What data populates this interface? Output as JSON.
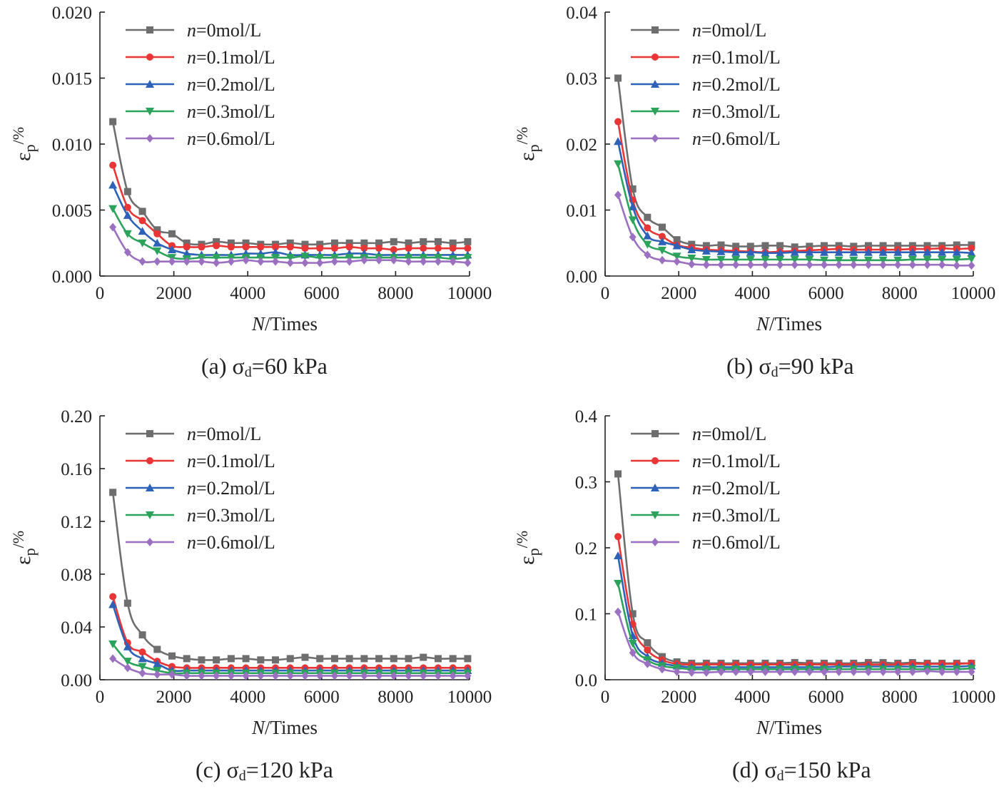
{
  "colors": {
    "n0": "#6e6e6e",
    "n01": "#e83535",
    "n02": "#2e62b8",
    "n03": "#2ca35a",
    "n06": "#9b70c0"
  },
  "chart_data": [
    {
      "type": "line",
      "caption_prefix": "(a) σ",
      "caption_sub": "d",
      "caption_suffix": "=60 kPa",
      "xlabel_italic": "N",
      "xlabel_rest": "/Times",
      "ylabel_main": "ε",
      "ylabel_sub": "p",
      "ylabel_suffix": "/%",
      "xlim": [
        0,
        10000
      ],
      "ylim": [
        0,
        0.02
      ],
      "xticks": [
        0,
        2000,
        4000,
        6000,
        8000,
        10000
      ],
      "yticks": [
        0,
        0.005,
        0.01,
        0.015,
        0.02
      ],
      "ytick_labels": [
        "0.000",
        "0.005",
        "0.010",
        "0.015",
        "0.020"
      ],
      "xtick_labels": [
        "0",
        "2000",
        "4000",
        "6000",
        "8000",
        "10000"
      ],
      "x": [
        350,
        750,
        1150,
        1550,
        1950,
        2350,
        2750,
        3150,
        3550,
        3950,
        4350,
        4750,
        5150,
        5550,
        5950,
        6350,
        6750,
        7150,
        7550,
        7950,
        8350,
        8750,
        9150,
        9550,
        9950
      ],
      "series": [
        {
          "name_italic": "n",
          "name_rest": "=0mol/L",
          "marker": "square",
          "color_key": "n0",
          "values": [
            0.0117,
            0.0064,
            0.0049,
            0.0035,
            0.0032,
            0.0025,
            0.0024,
            0.0026,
            0.0025,
            0.0025,
            0.0024,
            0.0024,
            0.0025,
            0.0024,
            0.0024,
            0.0025,
            0.0025,
            0.0025,
            0.0025,
            0.0026,
            0.0025,
            0.0026,
            0.0026,
            0.0025,
            0.0026
          ]
        },
        {
          "name_italic": "n",
          "name_rest": "=0.1mol/L",
          "marker": "circle",
          "color_key": "n01",
          "values": [
            0.0084,
            0.0052,
            0.0042,
            0.0032,
            0.0023,
            0.0022,
            0.0022,
            0.0023,
            0.0022,
            0.0022,
            0.0022,
            0.0022,
            0.0022,
            0.0021,
            0.0021,
            0.0021,
            0.0022,
            0.0021,
            0.0021,
            0.002,
            0.0021,
            0.0021,
            0.0021,
            0.0021,
            0.0021
          ]
        },
        {
          "name_italic": "n",
          "name_rest": "=0.2mol/L",
          "marker": "triangle-up",
          "color_key": "n02",
          "values": [
            0.0069,
            0.0046,
            0.0034,
            0.0025,
            0.002,
            0.0017,
            0.0016,
            0.0016,
            0.0016,
            0.0017,
            0.0017,
            0.0018,
            0.0016,
            0.0016,
            0.0016,
            0.0016,
            0.0017,
            0.0017,
            0.0016,
            0.0016,
            0.0016,
            0.0016,
            0.0016,
            0.0016,
            0.0016
          ]
        },
        {
          "name_italic": "n",
          "name_rest": "=0.3mol/L",
          "marker": "triangle-down",
          "color_key": "n03",
          "values": [
            0.0051,
            0.0032,
            0.0025,
            0.0019,
            0.0014,
            0.0013,
            0.0014,
            0.0014,
            0.0014,
            0.0014,
            0.0014,
            0.0014,
            0.0014,
            0.0015,
            0.0014,
            0.0014,
            0.0014,
            0.0014,
            0.0014,
            0.0014,
            0.0014,
            0.0014,
            0.0014,
            0.0013,
            0.0014
          ]
        },
        {
          "name_italic": "n",
          "name_rest": "=0.6mol/L",
          "marker": "diamond",
          "color_key": "n06",
          "values": [
            0.0037,
            0.0018,
            0.0011,
            0.0011,
            0.0011,
            0.0011,
            0.0011,
            0.001,
            0.0011,
            0.0012,
            0.0011,
            0.0011,
            0.001,
            0.001,
            0.001,
            0.0011,
            0.0011,
            0.0012,
            0.0012,
            0.0012,
            0.0011,
            0.0011,
            0.0011,
            0.0011,
            0.001
          ]
        }
      ]
    },
    {
      "type": "line",
      "caption_prefix": "(b) σ",
      "caption_sub": "d",
      "caption_suffix": "=90 kPa",
      "xlabel_italic": "N",
      "xlabel_rest": "/Times",
      "ylabel_main": "ε",
      "ylabel_sub": "p",
      "ylabel_suffix": "/%",
      "xlim": [
        0,
        10000
      ],
      "ylim": [
        0,
        0.04
      ],
      "xticks": [
        0,
        2000,
        4000,
        6000,
        8000,
        10000
      ],
      "yticks": [
        0,
        0.01,
        0.02,
        0.03,
        0.04
      ],
      "ytick_labels": [
        "0.00",
        "0.01",
        "0.02",
        "0.03",
        "0.04"
      ],
      "xtick_labels": [
        "0",
        "2000",
        "4000",
        "6000",
        "8000",
        "10000"
      ],
      "x": [
        350,
        750,
        1150,
        1550,
        1950,
        2350,
        2750,
        3150,
        3550,
        3950,
        4350,
        4750,
        5150,
        5550,
        5950,
        6350,
        6750,
        7150,
        7550,
        7950,
        8350,
        8750,
        9150,
        9550,
        9950
      ],
      "series": [
        {
          "name_italic": "n",
          "name_rest": "=0mol/L",
          "marker": "square",
          "color_key": "n0",
          "values": [
            0.03,
            0.0132,
            0.0089,
            0.0074,
            0.0055,
            0.0048,
            0.0046,
            0.0047,
            0.0045,
            0.0045,
            0.0046,
            0.0046,
            0.0044,
            0.0045,
            0.0046,
            0.0046,
            0.0045,
            0.0046,
            0.0046,
            0.0046,
            0.0046,
            0.0046,
            0.0046,
            0.0047,
            0.0047
          ]
        },
        {
          "name_italic": "n",
          "name_rest": "=0.1mol/L",
          "marker": "circle",
          "color_key": "n01",
          "values": [
            0.0234,
            0.0115,
            0.0073,
            0.006,
            0.0047,
            0.0043,
            0.004,
            0.0039,
            0.0038,
            0.0037,
            0.0036,
            0.0037,
            0.0038,
            0.0039,
            0.004,
            0.0041,
            0.004,
            0.004,
            0.004,
            0.004,
            0.0041,
            0.0041,
            0.0042,
            0.0041,
            0.0042
          ]
        },
        {
          "name_italic": "n",
          "name_rest": "=0.2mol/L",
          "marker": "triangle-up",
          "color_key": "n02",
          "values": [
            0.0204,
            0.0105,
            0.0061,
            0.0052,
            0.0046,
            0.004,
            0.0038,
            0.0037,
            0.0036,
            0.0036,
            0.0035,
            0.0035,
            0.0036,
            0.0036,
            0.0036,
            0.0036,
            0.0036,
            0.0036,
            0.0036,
            0.0036,
            0.0036,
            0.0036,
            0.0036,
            0.0036,
            0.0035
          ]
        },
        {
          "name_italic": "n",
          "name_rest": "=0.3mol/L",
          "marker": "triangle-down",
          "color_key": "n03",
          "values": [
            0.017,
            0.0085,
            0.0048,
            0.0039,
            0.003,
            0.0027,
            0.0025,
            0.0025,
            0.0025,
            0.0025,
            0.0025,
            0.0025,
            0.0025,
            0.0025,
            0.0024,
            0.0024,
            0.0024,
            0.0024,
            0.0024,
            0.0024,
            0.0025,
            0.0025,
            0.0025,
            0.0025,
            0.0026
          ]
        },
        {
          "name_italic": "n",
          "name_rest": "=0.6mol/L",
          "marker": "diamond",
          "color_key": "n06",
          "values": [
            0.0123,
            0.0059,
            0.0032,
            0.0024,
            0.0022,
            0.0018,
            0.0017,
            0.0017,
            0.0017,
            0.0017,
            0.0017,
            0.0017,
            0.0017,
            0.0017,
            0.0017,
            0.0017,
            0.0017,
            0.0017,
            0.0017,
            0.0017,
            0.0017,
            0.0017,
            0.0017,
            0.0016,
            0.0016
          ]
        }
      ]
    },
    {
      "type": "line",
      "caption_prefix": "(c) σ",
      "caption_sub": "d",
      "caption_suffix": "=120 kPa",
      "xlabel_italic": "N",
      "xlabel_rest": "/Times",
      "ylabel_main": "ε",
      "ylabel_sub": "p",
      "ylabel_suffix": "/%",
      "xlim": [
        0,
        10000
      ],
      "ylim": [
        0,
        0.2
      ],
      "xticks": [
        0,
        2000,
        4000,
        6000,
        8000,
        10000
      ],
      "yticks": [
        0,
        0.04,
        0.08,
        0.12,
        0.16,
        0.2
      ],
      "ytick_labels": [
        "0.00",
        "0.04",
        "0.08",
        "0.12",
        "0.16",
        "0.20"
      ],
      "xtick_labels": [
        "0",
        "2000",
        "4000",
        "6000",
        "8000",
        "10000"
      ],
      "x": [
        350,
        750,
        1150,
        1550,
        1950,
        2350,
        2750,
        3150,
        3550,
        3950,
        4350,
        4750,
        5150,
        5550,
        5950,
        6350,
        6750,
        7150,
        7550,
        7950,
        8350,
        8750,
        9150,
        9550,
        9950
      ],
      "series": [
        {
          "name_italic": "n",
          "name_rest": "=0mol/L",
          "marker": "square",
          "color_key": "n0",
          "values": [
            0.142,
            0.058,
            0.034,
            0.023,
            0.018,
            0.016,
            0.015,
            0.015,
            0.016,
            0.016,
            0.015,
            0.015,
            0.016,
            0.017,
            0.016,
            0.016,
            0.016,
            0.016,
            0.016,
            0.016,
            0.016,
            0.017,
            0.016,
            0.016,
            0.016
          ]
        },
        {
          "name_italic": "n",
          "name_rest": "=0.1mol/L",
          "marker": "circle",
          "color_key": "n01",
          "values": [
            0.063,
            0.028,
            0.021,
            0.014,
            0.01,
            0.009,
            0.009,
            0.009,
            0.009,
            0.009,
            0.009,
            0.009,
            0.009,
            0.009,
            0.009,
            0.009,
            0.009,
            0.009,
            0.009,
            0.009,
            0.009,
            0.009,
            0.009,
            0.009,
            0.009
          ]
        },
        {
          "name_italic": "n",
          "name_rest": "=0.2mol/L",
          "marker": "triangle-up",
          "color_key": "n02",
          "values": [
            0.057,
            0.025,
            0.016,
            0.012,
            0.007,
            0.007,
            0.007,
            0.007,
            0.007,
            0.007,
            0.007,
            0.007,
            0.007,
            0.007,
            0.007,
            0.007,
            0.007,
            0.007,
            0.007,
            0.007,
            0.007,
            0.007,
            0.007,
            0.007,
            0.007
          ]
        },
        {
          "name_italic": "n",
          "name_rest": "=0.3mol/L",
          "marker": "triangle-down",
          "color_key": "n03",
          "values": [
            0.027,
            0.014,
            0.01,
            0.007,
            0.005,
            0.005,
            0.005,
            0.005,
            0.005,
            0.005,
            0.005,
            0.005,
            0.005,
            0.005,
            0.005,
            0.005,
            0.005,
            0.005,
            0.005,
            0.005,
            0.005,
            0.005,
            0.005,
            0.005,
            0.005
          ]
        },
        {
          "name_italic": "n",
          "name_rest": "=0.6mol/L",
          "marker": "diamond",
          "color_key": "n06",
          "values": [
            0.016,
            0.009,
            0.005,
            0.004,
            0.004,
            0.003,
            0.003,
            0.003,
            0.003,
            0.003,
            0.003,
            0.003,
            0.003,
            0.003,
            0.003,
            0.003,
            0.003,
            0.003,
            0.003,
            0.003,
            0.003,
            0.003,
            0.003,
            0.003,
            0.003
          ]
        }
      ]
    },
    {
      "type": "line",
      "caption_prefix": "(d) σ",
      "caption_sub": "d",
      "caption_suffix": "=150 kPa",
      "xlabel_italic": "N",
      "xlabel_rest": "/Times",
      "ylabel_main": "ε",
      "ylabel_sub": "p",
      "ylabel_suffix": "/%",
      "xlim": [
        0,
        10000
      ],
      "ylim": [
        0,
        0.4
      ],
      "xticks": [
        0,
        2000,
        4000,
        6000,
        8000,
        10000
      ],
      "yticks": [
        0,
        0.1,
        0.2,
        0.3,
        0.4
      ],
      "ytick_labels": [
        "0.0",
        "0.1",
        "0.2",
        "0.3",
        "0.4"
      ],
      "xtick_labels": [
        "0",
        "2000",
        "4000",
        "6000",
        "8000",
        "10000"
      ],
      "x": [
        350,
        750,
        1150,
        1550,
        1950,
        2350,
        2750,
        3150,
        3550,
        3950,
        4350,
        4750,
        5150,
        5550,
        5950,
        6350,
        6750,
        7150,
        7550,
        7950,
        8350,
        8750,
        9150,
        9550,
        9950
      ],
      "series": [
        {
          "name_italic": "n",
          "name_rest": "=0mol/L",
          "marker": "square",
          "color_key": "n0",
          "values": [
            0.312,
            0.1,
            0.056,
            0.035,
            0.027,
            0.025,
            0.025,
            0.025,
            0.025,
            0.025,
            0.025,
            0.025,
            0.026,
            0.025,
            0.025,
            0.025,
            0.025,
            0.026,
            0.026,
            0.025,
            0.026,
            0.025,
            0.025,
            0.025,
            0.025
          ]
        },
        {
          "name_italic": "n",
          "name_rest": "=0.1mol/L",
          "marker": "circle",
          "color_key": "n01",
          "values": [
            0.217,
            0.084,
            0.045,
            0.03,
            0.024,
            0.023,
            0.023,
            0.023,
            0.023,
            0.023,
            0.023,
            0.023,
            0.023,
            0.023,
            0.023,
            0.023,
            0.023,
            0.023,
            0.023,
            0.023,
            0.024,
            0.024,
            0.024,
            0.024,
            0.025
          ]
        },
        {
          "name_italic": "n",
          "name_rest": "=0.2mol/L",
          "marker": "triangle-up",
          "color_key": "n02",
          "values": [
            0.188,
            0.067,
            0.035,
            0.025,
            0.021,
            0.019,
            0.019,
            0.019,
            0.019,
            0.019,
            0.019,
            0.019,
            0.019,
            0.019,
            0.019,
            0.02,
            0.02,
            0.02,
            0.02,
            0.02,
            0.02,
            0.02,
            0.02,
            0.02,
            0.021
          ]
        },
        {
          "name_italic": "n",
          "name_rest": "=0.3mol/L",
          "marker": "triangle-down",
          "color_key": "n03",
          "values": [
            0.146,
            0.055,
            0.03,
            0.021,
            0.018,
            0.016,
            0.016,
            0.016,
            0.016,
            0.016,
            0.016,
            0.016,
            0.016,
            0.016,
            0.016,
            0.016,
            0.016,
            0.016,
            0.016,
            0.016,
            0.016,
            0.016,
            0.016,
            0.016,
            0.017
          ]
        },
        {
          "name_italic": "n",
          "name_rest": "=0.6mol/L",
          "marker": "diamond",
          "color_key": "n06",
          "values": [
            0.103,
            0.041,
            0.024,
            0.016,
            0.012,
            0.011,
            0.011,
            0.012,
            0.012,
            0.012,
            0.012,
            0.012,
            0.012,
            0.012,
            0.012,
            0.012,
            0.012,
            0.012,
            0.012,
            0.012,
            0.012,
            0.013,
            0.012,
            0.012,
            0.012
          ]
        }
      ]
    }
  ]
}
